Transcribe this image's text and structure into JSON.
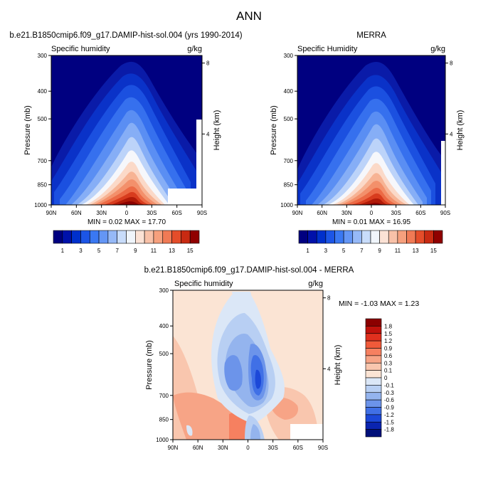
{
  "page": {
    "title": "ANN",
    "x_ticks": [
      "90N",
      "60N",
      "30N",
      "0",
      "30S",
      "60S",
      "90S"
    ],
    "y_ticks": [
      "300",
      "400",
      "500",
      "700",
      "850",
      "1000"
    ],
    "height_ticks": [
      "8",
      "4"
    ]
  },
  "chart_data": [
    {
      "type": "heatmap",
      "id": "model",
      "title": "b.e21.B1850cmip6.f09_g17.DAMIP-hist-sol.004 (yrs 1990-2014)",
      "subtitle_left": "Specific humidity",
      "units": "g/kg",
      "xlabel": "",
      "ylabel": "Pressure (mb)",
      "ylabel_right": "Height (km)",
      "x_range": [
        "90N",
        "90S"
      ],
      "y_range": [
        1000,
        300
      ],
      "stats": "MIN =  0.02  MAX =  17.70",
      "min": 0.02,
      "max": 17.7,
      "colorbar": {
        "labels": [
          "1",
          "3",
          "5",
          "7",
          "9",
          "11",
          "13",
          "15"
        ],
        "colors": [
          "#000080",
          "#0011aa",
          "#0030cc",
          "#1c55e6",
          "#3a78f2",
          "#6496f5",
          "#96b9f7",
          "#c8dcfa",
          "#f0f5fb",
          "#fbe2d5",
          "#f8c1a8",
          "#f6a07d",
          "#f07a55",
          "#e44d2a",
          "#c82a12",
          "#900000"
        ]
      }
    },
    {
      "type": "heatmap",
      "id": "obs",
      "title": "MERRA",
      "subtitle_left": "Specific Humidity",
      "units": "g/kg",
      "xlabel": "",
      "ylabel": "Pressure (mb)",
      "ylabel_right": "Height (km)",
      "x_range": [
        "90N",
        "90S"
      ],
      "y_range": [
        1000,
        300
      ],
      "stats": "MIN =  0.01  MAX =  16.95",
      "min": 0.01,
      "max": 16.95,
      "colorbar": {
        "labels": [
          "1",
          "3",
          "5",
          "7",
          "9",
          "11",
          "13",
          "15"
        ],
        "colors": [
          "#000080",
          "#0011aa",
          "#0030cc",
          "#1c55e6",
          "#3a78f2",
          "#6496f5",
          "#96b9f7",
          "#c8dcfa",
          "#f0f5fb",
          "#fbe2d5",
          "#f8c1a8",
          "#f6a07d",
          "#f07a55",
          "#e44d2a",
          "#c82a12",
          "#900000"
        ]
      }
    },
    {
      "type": "heatmap",
      "id": "diff",
      "title": "b.e21.B1850cmip6.f09_g17.DAMIP-hist-sol.004 - MERRA",
      "subtitle_left": "Specific humidity",
      "units": "g/kg",
      "xlabel": "",
      "ylabel": "Pressure (mb)",
      "ylabel_right": "Height (km)",
      "x_range": [
        "90N",
        "90S"
      ],
      "y_range": [
        1000,
        300
      ],
      "stats": "MIN = -1.03  MAX =  1.23",
      "min": -1.03,
      "max": 1.23,
      "colorbar": {
        "labels": [
          "1.8",
          "1.5",
          "1.2",
          "0.9",
          "0.6",
          "0.3",
          "0.1",
          "0",
          "-0.1",
          "-0.3",
          "-0.6",
          "-0.9",
          "-1.2",
          "-1.5",
          "-1.8"
        ],
        "colors": [
          "#8b0000",
          "#c0120c",
          "#e0301e",
          "#f05a3a",
          "#f68060",
          "#f7a486",
          "#f9c6ae",
          "#fbe4d4",
          "#dbe7f7",
          "#b8cff3",
          "#94b4ee",
          "#6c94ea",
          "#4070e6",
          "#1c48d8",
          "#0a24b0",
          "#00107a"
        ]
      }
    }
  ]
}
